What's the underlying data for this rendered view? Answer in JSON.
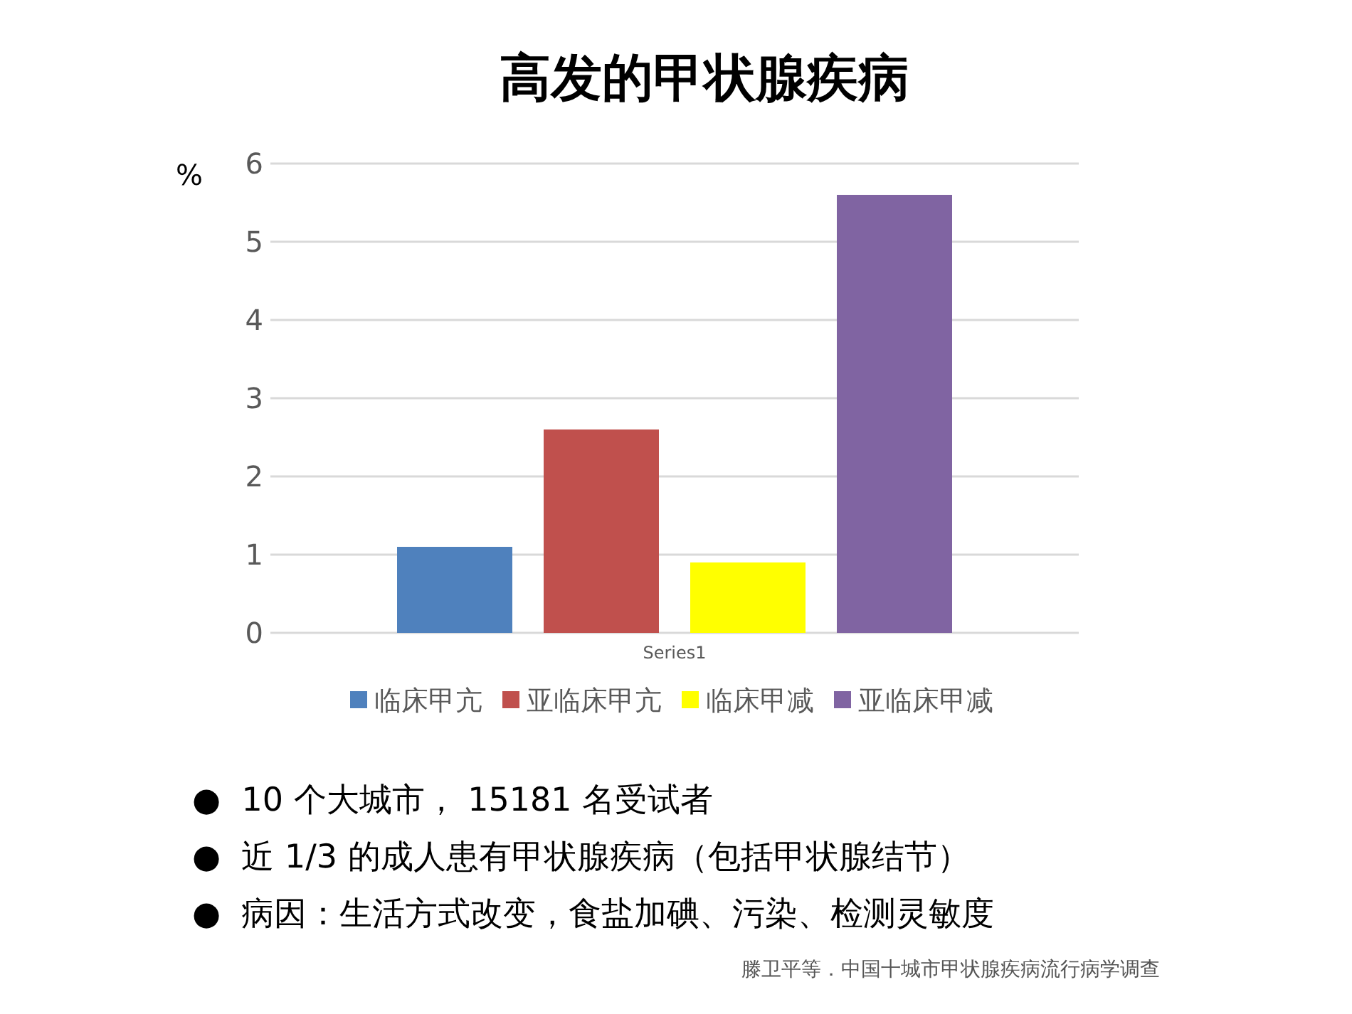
{
  "chart_data": {
    "type": "bar",
    "title": "高发的甲状腺疾病",
    "ylabel": "%",
    "categories": [
      "Series1"
    ],
    "series": [
      {
        "name": "临床甲亢",
        "color": "#4f81bd",
        "values": [
          1.1
        ]
      },
      {
        "name": "亚临床甲亢",
        "color": "#c0504d",
        "values": [
          2.6
        ]
      },
      {
        "name": "临床甲减",
        "color": "#ffff00",
        "values": [
          0.9
        ]
      },
      {
        "name": "亚临床甲减",
        "color": "#8064a2",
        "values": [
          5.6
        ]
      }
    ],
    "ylim": [
      0,
      6
    ],
    "yticks": [
      0,
      1,
      2,
      3,
      4,
      5,
      6
    ],
    "grid": "y",
    "legend": "bottom",
    "annotations": [
      "●  10 个大城市， 15181 名受试者",
      "●  近 1/3 的成人患有甲状腺疾病（包括甲状腺结节）",
      "●  病因：生活方式改变，食盐加碘、污染、检测灵敏度",
      "滕卫平等．中国十城市甲状腺疾病流行病学调查"
    ]
  }
}
